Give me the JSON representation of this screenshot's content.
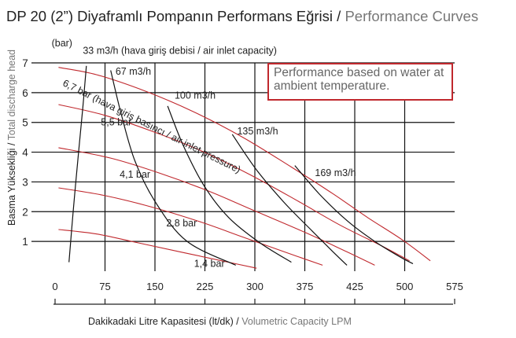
{
  "title": {
    "main": "DP 20 (2”) Diyaframlı Pompanın Performans Eğrisi",
    "separator": " / ",
    "sub": "Performance Curves"
  },
  "yaxis": {
    "unit": "(bar)",
    "label_main": "Basma Yüksekliği",
    "separator": " / ",
    "label_sub": "Total discharge head"
  },
  "xaxis": {
    "label_main": "Dakikadaki Litre Kapasitesi (lt/dk)",
    "separator": " / ",
    "label_sub": "Volumetric Capacity LPM"
  },
  "note": "Performance based on water at ambient temperature.",
  "colors": {
    "pressure_curve": "#c0282d",
    "air_curve": "#111111",
    "grid": "#111111",
    "note_border": "#c0282d"
  },
  "chart_data": {
    "type": "line",
    "xlim": [
      0,
      575
    ],
    "ylim": [
      0,
      7
    ],
    "xticks": [
      "0",
      "75",
      "150",
      "225",
      "300",
      "375",
      "425",
      "500",
      "575"
    ],
    "yticks": [
      "1",
      "2",
      "3",
      "4",
      "5",
      "6",
      "7"
    ],
    "grid": true,
    "series": [
      {
        "name": "6,7 bar (hava giriş basıncı / air inlet pressure)",
        "kind": "pressure",
        "points": [
          [
            5,
            6.85
          ],
          [
            60,
            6.6
          ],
          [
            130,
            6.05
          ],
          [
            200,
            5.35
          ],
          [
            270,
            4.5
          ],
          [
            340,
            3.5
          ],
          [
            400,
            2.6
          ],
          [
            450,
            1.8
          ],
          [
            500,
            1.05
          ],
          [
            540,
            0.35
          ]
        ]
      },
      {
        "name": "5,5 bar",
        "kind": "pressure",
        "points": [
          [
            5,
            5.6
          ],
          [
            70,
            5.25
          ],
          [
            140,
            4.7
          ],
          [
            210,
            4.05
          ],
          [
            280,
            3.25
          ],
          [
            350,
            2.35
          ],
          [
            410,
            1.55
          ],
          [
            470,
            0.85
          ],
          [
            510,
            0.35
          ]
        ]
      },
      {
        "name": "4,1 bar",
        "kind": "pressure",
        "points": [
          [
            5,
            4.15
          ],
          [
            80,
            3.8
          ],
          [
            150,
            3.3
          ],
          [
            220,
            2.7
          ],
          [
            290,
            2.0
          ],
          [
            360,
            1.3
          ],
          [
            420,
            0.65
          ],
          [
            460,
            0.2
          ]
        ]
      },
      {
        "name": "2,8 bar",
        "kind": "pressure",
        "points": [
          [
            5,
            2.8
          ],
          [
            70,
            2.55
          ],
          [
            140,
            2.15
          ],
          [
            210,
            1.65
          ],
          [
            270,
            1.15
          ],
          [
            330,
            0.65
          ],
          [
            385,
            0.2
          ]
        ]
      },
      {
        "name": "1,4 bar",
        "kind": "pressure",
        "points": [
          [
            5,
            1.4
          ],
          [
            60,
            1.25
          ],
          [
            120,
            0.95
          ],
          [
            180,
            0.65
          ],
          [
            240,
            0.35
          ],
          [
            290,
            0.1
          ]
        ]
      },
      {
        "name": "33 m3/h",
        "kind": "air",
        "points": [
          [
            45,
            6.9
          ],
          [
            40,
            5.5
          ],
          [
            33,
            3.8
          ],
          [
            26,
            2.0
          ],
          [
            20,
            0.3
          ]
        ]
      },
      {
        "name": "67 m3/h",
        "kind": "air",
        "points": [
          [
            80,
            6.75
          ],
          [
            95,
            5.3
          ],
          [
            115,
            3.7
          ],
          [
            145,
            2.3
          ],
          [
            190,
            1.0
          ],
          [
            260,
            0.2
          ]
        ]
      },
      {
        "name": "100 m3/h",
        "kind": "air",
        "points": [
          [
            162,
            5.55
          ],
          [
            185,
            4.2
          ],
          [
            215,
            2.85
          ],
          [
            250,
            1.8
          ],
          [
            295,
            0.95
          ],
          [
            340,
            0.3
          ]
        ]
      },
      {
        "name": "135 m3/h",
        "kind": "air",
        "points": [
          [
            255,
            4.6
          ],
          [
            290,
            3.4
          ],
          [
            330,
            2.3
          ],
          [
            370,
            1.35
          ],
          [
            400,
            0.65
          ],
          [
            420,
            0.2
          ]
        ]
      },
      {
        "name": "169 m3/h",
        "kind": "air",
        "points": [
          [
            345,
            3.55
          ],
          [
            380,
            2.6
          ],
          [
            420,
            1.7
          ],
          [
            460,
            1.0
          ],
          [
            495,
            0.5
          ],
          [
            515,
            0.25
          ]
        ]
      }
    ],
    "labels": [
      {
        "text": "(bar)",
        "x": -5,
        "y": 7.55
      },
      {
        "text": "33 m3/h (hava giriş debisi / air inlet capacity)",
        "x": 40,
        "y": 7.3
      },
      {
        "text": "67 m3/h",
        "x": 87,
        "y": 6.6
      },
      {
        "text": "100 m3/h",
        "x": 172,
        "y": 5.8
      },
      {
        "text": "135 m3/h",
        "x": 262,
        "y": 4.6
      },
      {
        "text": "169 m3/h",
        "x": 374,
        "y": 3.2
      },
      {
        "text": "5,5 bar",
        "x": 66,
        "y": 4.9
      },
      {
        "text": "4,1 bar",
        "x": 93,
        "y": 3.15
      },
      {
        "text": "2,8 bar",
        "x": 160,
        "y": 1.5
      },
      {
        "text": "1,4 bar",
        "x": 200,
        "y": 0.15
      },
      {
        "text": "6,7 bar (hava giriş basıncı / air inlet pressure)",
        "x": 10,
        "y": 6.25,
        "angle": 26.5
      }
    ]
  }
}
